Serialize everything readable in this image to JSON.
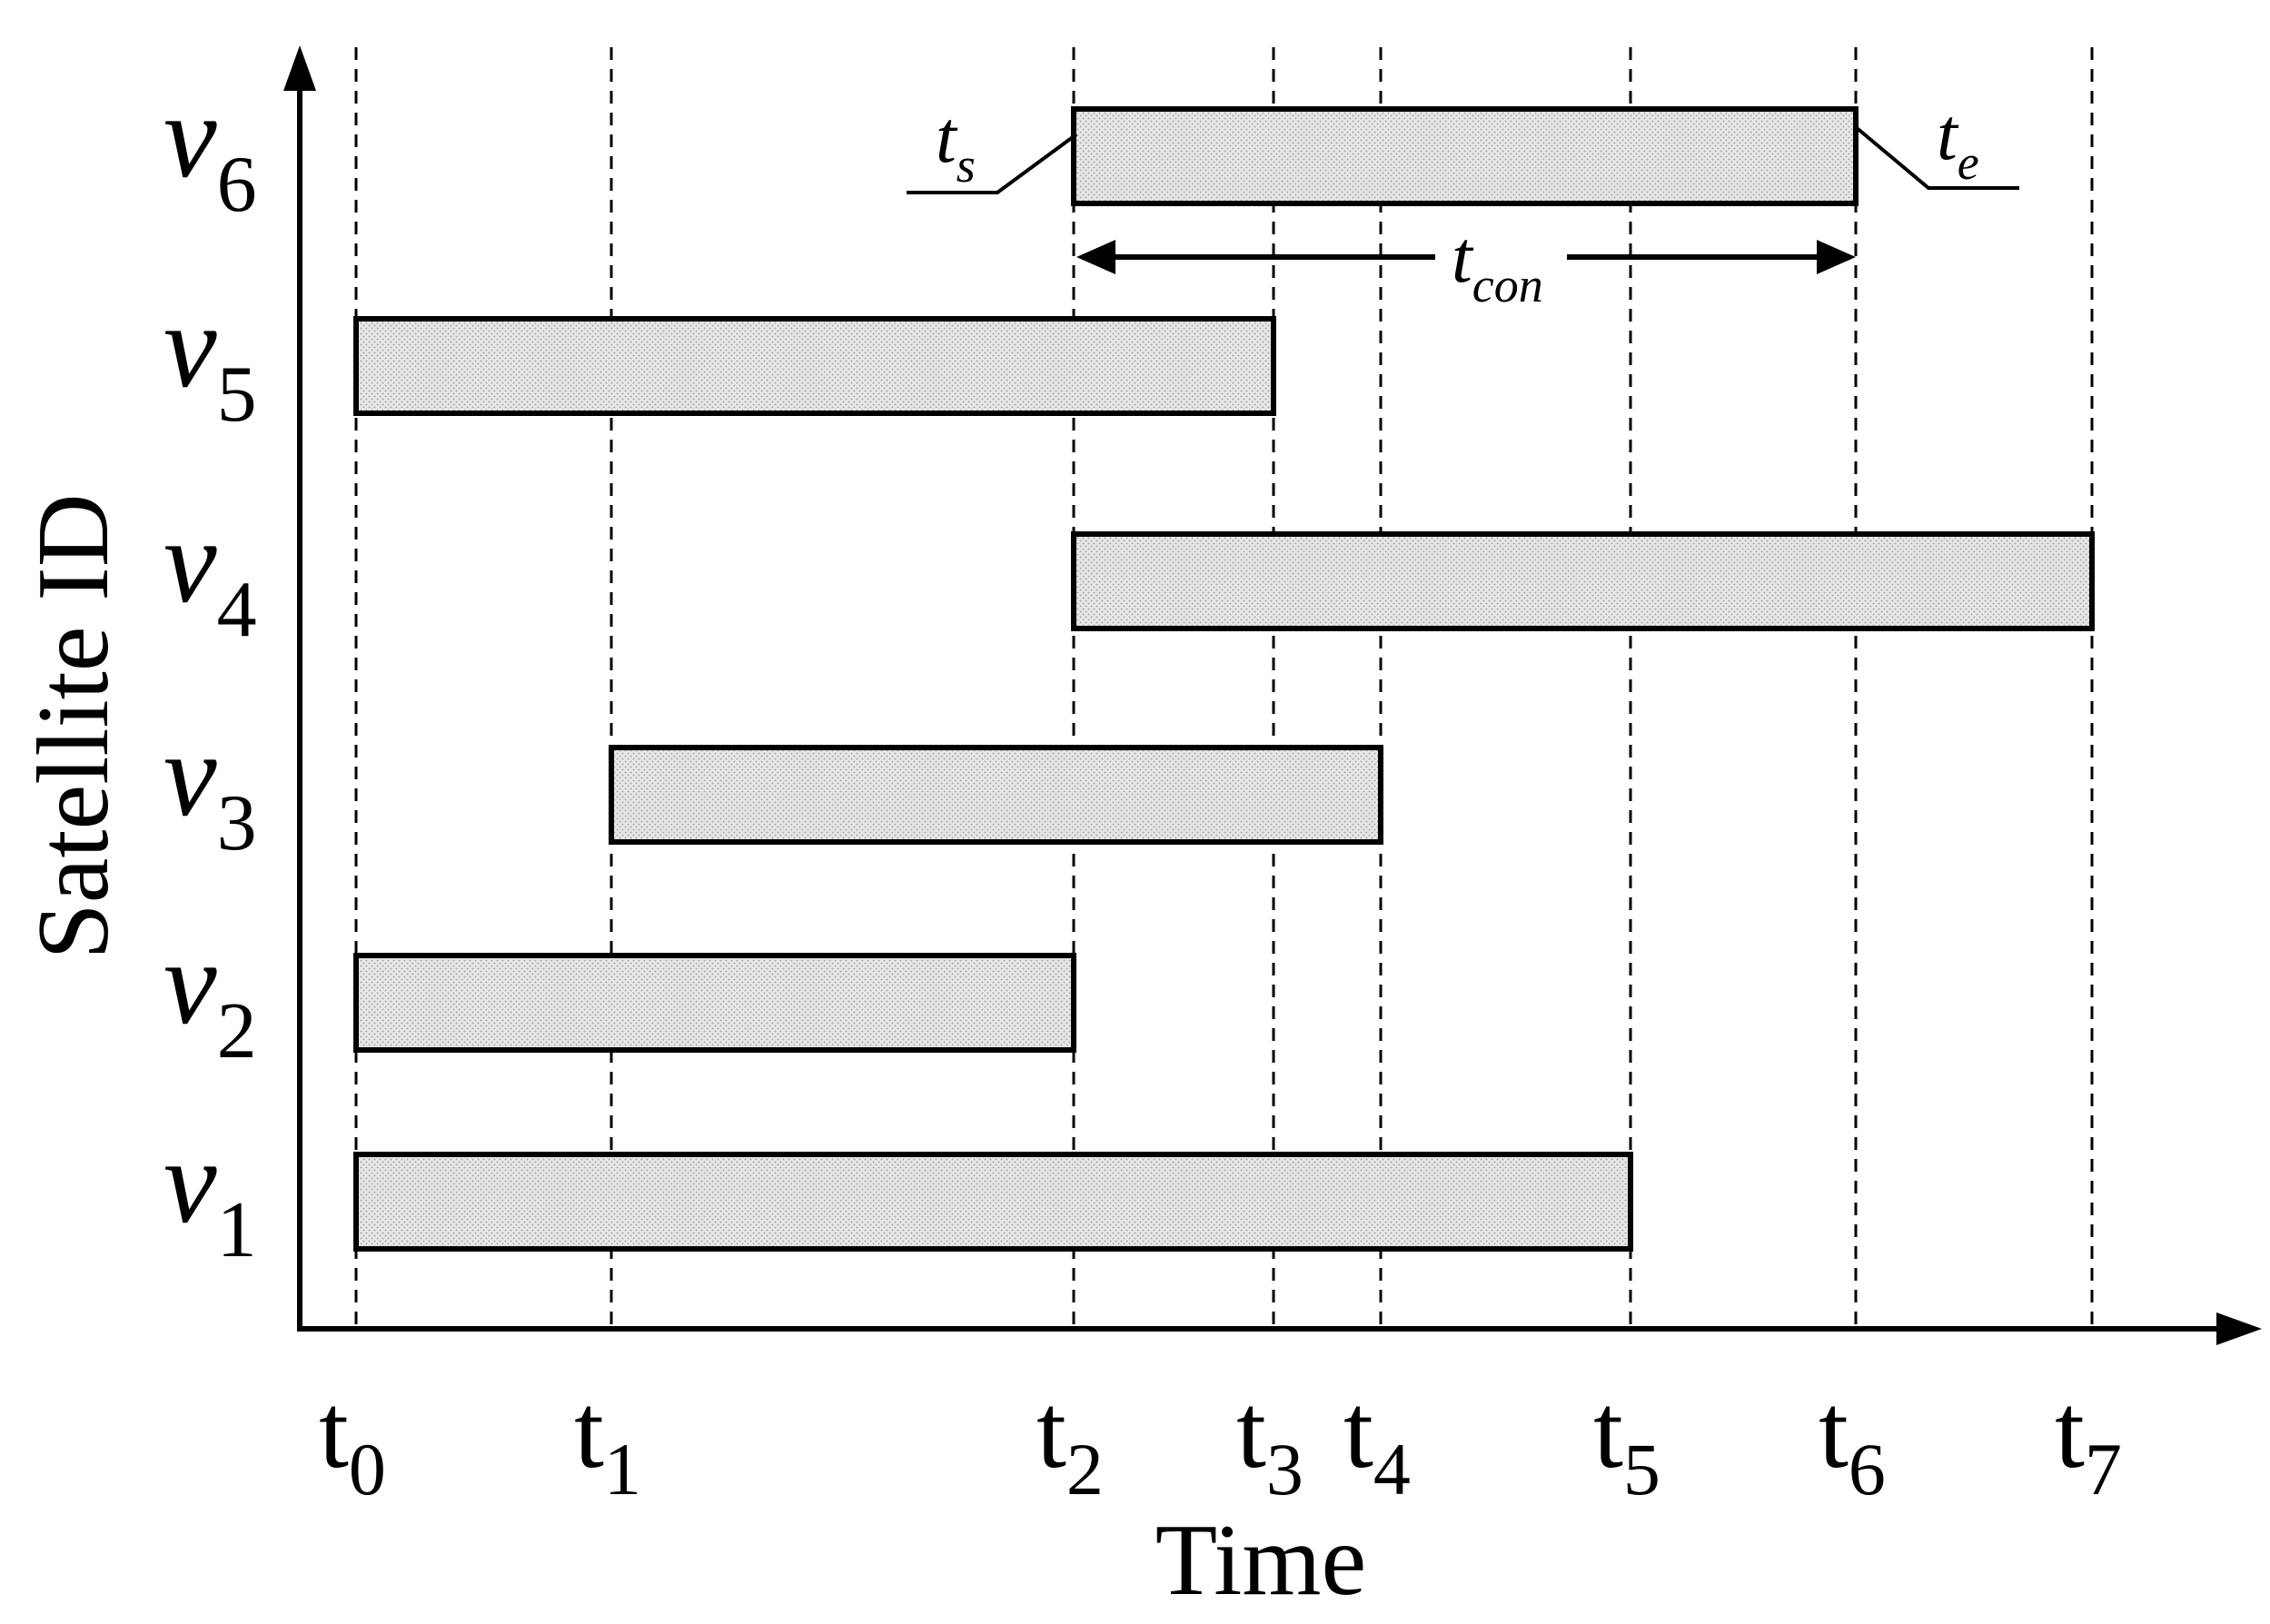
{
  "axes": {
    "y_label": "Satellite ID",
    "x_label": "Time"
  },
  "colors": {
    "bar_fill": "#e3e3e3",
    "ink": "#000000"
  },
  "time_ticks": [
    {
      "base": "t",
      "sub": "0"
    },
    {
      "base": "t",
      "sub": "1"
    },
    {
      "base": "t",
      "sub": "2"
    },
    {
      "base": "t",
      "sub": "3"
    },
    {
      "base": "t",
      "sub": "4"
    },
    {
      "base": "t",
      "sub": "5"
    },
    {
      "base": "t",
      "sub": "6"
    },
    {
      "base": "t",
      "sub": "7"
    }
  ],
  "satellites": [
    {
      "base": "v",
      "sub": "1",
      "start": "t0",
      "end": "t5"
    },
    {
      "base": "v",
      "sub": "2",
      "start": "t0",
      "end": "t2"
    },
    {
      "base": "v",
      "sub": "3",
      "start": "t1",
      "end": "t4"
    },
    {
      "base": "v",
      "sub": "4",
      "start": "t2",
      "end": "t7"
    },
    {
      "base": "v",
      "sub": "5",
      "start": "t0",
      "end": "t3"
    },
    {
      "base": "v",
      "sub": "6",
      "start": "t2",
      "end": "t6"
    }
  ],
  "annotations": {
    "start": {
      "base": "t",
      "sub": "s"
    },
    "end": {
      "base": "t",
      "sub": "e"
    },
    "duration": {
      "base": "t",
      "sub": "con"
    }
  }
}
